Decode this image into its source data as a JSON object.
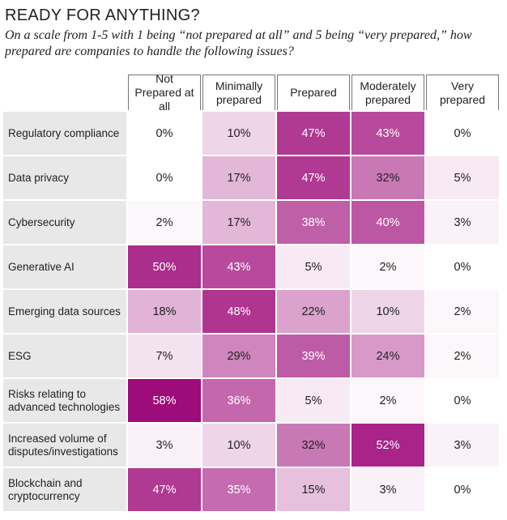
{
  "chart_data": {
    "type": "heatmap",
    "title": "READY FOR ANYTHING?",
    "subtitle": "On a scale from 1-5 with 1 being “not prepared at all” and 5 being “very prepared,” how prepared are companies to handle the following issues?",
    "columns": [
      "Not Prepared at all",
      "Minimally prepared",
      "Prepared",
      "Moderately prepared",
      "Very prepared"
    ],
    "rows": [
      "Regulatory compliance",
      "Data privacy",
      "Cybersecurity",
      "Generative AI",
      "Emerging data sources",
      "ESG",
      "Risks relating to advanced technologies",
      "Increased volume of disputes/investigations",
      "Blockchain and cryptocurrency"
    ],
    "values": [
      [
        0,
        10,
        47,
        43,
        0
      ],
      [
        0,
        17,
        47,
        32,
        5
      ],
      [
        2,
        17,
        38,
        40,
        3
      ],
      [
        50,
        43,
        5,
        2,
        0
      ],
      [
        18,
        48,
        22,
        10,
        2
      ],
      [
        7,
        29,
        39,
        24,
        2
      ],
      [
        58,
        36,
        5,
        2,
        0
      ],
      [
        3,
        10,
        32,
        52,
        3
      ],
      [
        47,
        35,
        15,
        3,
        0
      ]
    ],
    "value_labels": [
      [
        "0%",
        "10%",
        "47%",
        "43%",
        "0%"
      ],
      [
        "0%",
        "17%",
        "47%",
        "32%",
        "5%"
      ],
      [
        "2%",
        "17%",
        "38%",
        "40%",
        "3%"
      ],
      [
        "50%",
        "43%",
        "5%",
        "2%",
        "0%"
      ],
      [
        "18%",
        "48%",
        "22%",
        "10%",
        "2%"
      ],
      [
        "7%",
        "29%",
        "39%",
        "24%",
        "2%"
      ],
      [
        "58%",
        "36%",
        "5%",
        "2%",
        "0%"
      ],
      [
        "3%",
        "10%",
        "32%",
        "52%",
        "3%"
      ],
      [
        "47%",
        "35%",
        "15%",
        "3%",
        "0%"
      ]
    ],
    "color_low": "#ffffff",
    "color_high": "#9e0b7a"
  }
}
